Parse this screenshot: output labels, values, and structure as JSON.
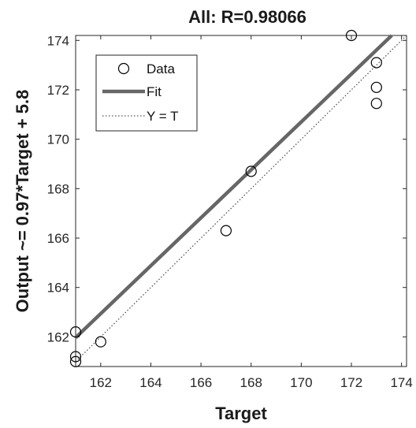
{
  "chart_data": {
    "type": "scatter",
    "title": "All: R=0.98066",
    "xlabel": "Target",
    "ylabel": "Output ~= 0.97*Target + 5.8",
    "xlim": [
      161,
      174.2
    ],
    "ylim": [
      160.8,
      174.2
    ],
    "xticks": [
      162,
      164,
      166,
      168,
      170,
      172,
      174
    ],
    "yticks": [
      162,
      164,
      166,
      168,
      170,
      172,
      174
    ],
    "grid": false,
    "legend_position": "top-left",
    "series": [
      {
        "name": "Data",
        "kind": "points",
        "marker": "open-circle",
        "color": "#000000",
        "points": [
          {
            "x": 161,
            "y": 162.2
          },
          {
            "x": 161,
            "y": 161.2
          },
          {
            "x": 161,
            "y": 161
          },
          {
            "x": 162,
            "y": 161.8
          },
          {
            "x": 167,
            "y": 166.3
          },
          {
            "x": 168,
            "y": 168.7
          },
          {
            "x": 172,
            "y": 174.2
          },
          {
            "x": 173,
            "y": 173.1
          },
          {
            "x": 173,
            "y": 172.1
          },
          {
            "x": 173,
            "y": 171.45
          }
        ]
      },
      {
        "name": "Fit",
        "kind": "line",
        "color": "#666666",
        "slope": 0.97,
        "intercept": 5.8
      },
      {
        "name": "Y = T",
        "kind": "line",
        "style": "dotted",
        "color": "#555555",
        "slope": 1,
        "intercept": 0
      }
    ]
  }
}
